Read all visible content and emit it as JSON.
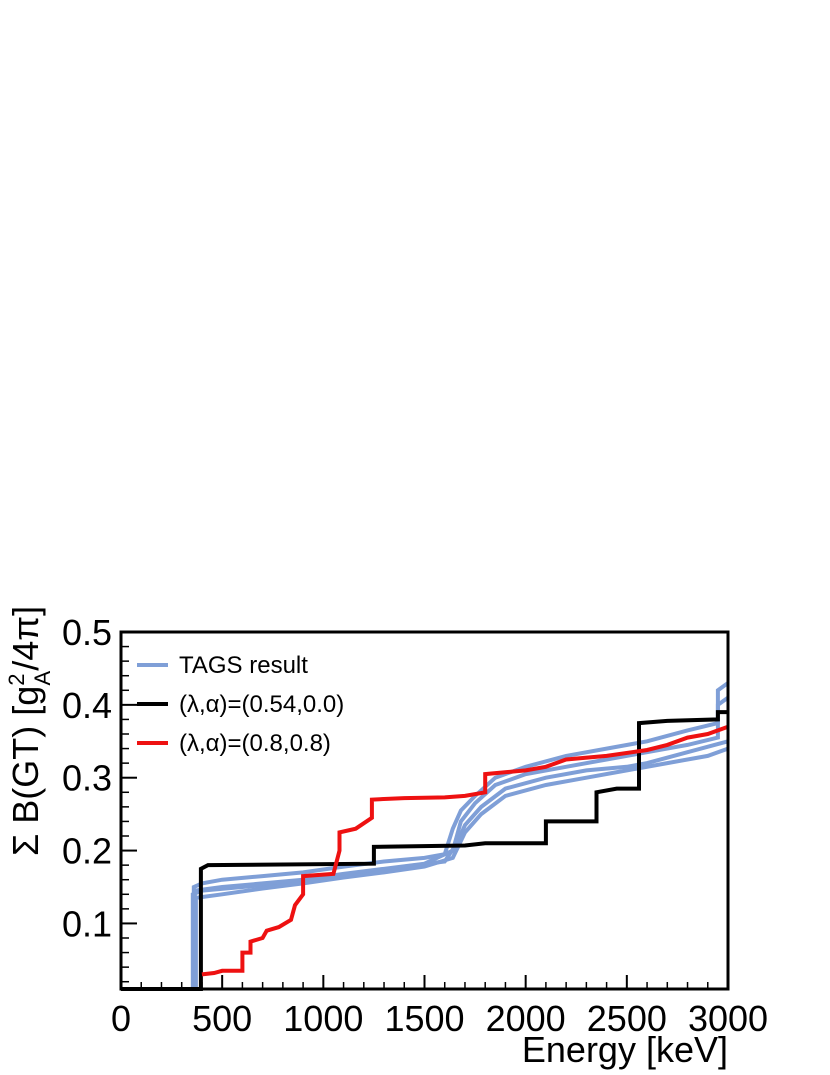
{
  "chart_data": {
    "type": "line",
    "title": "",
    "xlabel": "Energy [keV]",
    "ylabel_parts": {
      "main": "Σ B(GT) [g",
      "sup": "2",
      "sub": "A",
      "tail": "/4π]"
    },
    "xlim": [
      0,
      3000
    ],
    "ylim": [
      0.01,
      0.5
    ],
    "x_ticks": [
      0,
      500,
      1000,
      1500,
      2000,
      2500,
      3000
    ],
    "x_tick_labels": [
      "0",
      "500",
      "1000",
      "1500",
      "2000",
      "2500",
      "3000"
    ],
    "y_ticks": [
      0.1,
      0.2,
      0.3,
      0.4,
      0.5
    ],
    "y_tick_labels": [
      "0.1",
      "0.2",
      "0.3",
      "0.4",
      "0.5"
    ],
    "grid": false,
    "legend_position": "top-left",
    "series": [
      {
        "name": "TAGS result",
        "color": "#7f9fd7",
        "legend": true,
        "points": [
          [
            0,
            0.01
          ],
          [
            360,
            0.01
          ],
          [
            360,
            0.15
          ],
          [
            400,
            0.155
          ],
          [
            500,
            0.16
          ],
          [
            700,
            0.165
          ],
          [
            900,
            0.17
          ],
          [
            1100,
            0.178
          ],
          [
            1300,
            0.185
          ],
          [
            1500,
            0.19
          ],
          [
            1600,
            0.195
          ],
          [
            1640,
            0.23
          ],
          [
            1680,
            0.255
          ],
          [
            1750,
            0.275
          ],
          [
            1850,
            0.3
          ],
          [
            2000,
            0.315
          ],
          [
            2200,
            0.33
          ],
          [
            2400,
            0.34
          ],
          [
            2600,
            0.35
          ],
          [
            2800,
            0.365
          ],
          [
            2950,
            0.375
          ],
          [
            2950,
            0.42
          ],
          [
            3000,
            0.43
          ]
        ]
      },
      {
        "color": "#7f9fd7",
        "legend": false,
        "points": [
          [
            0,
            0.01
          ],
          [
            355,
            0.01
          ],
          [
            355,
            0.14
          ],
          [
            400,
            0.145
          ],
          [
            600,
            0.15
          ],
          [
            800,
            0.155
          ],
          [
            1000,
            0.16
          ],
          [
            1200,
            0.17
          ],
          [
            1400,
            0.178
          ],
          [
            1600,
            0.185
          ],
          [
            1660,
            0.21
          ],
          [
            1700,
            0.235
          ],
          [
            1780,
            0.26
          ],
          [
            1900,
            0.285
          ],
          [
            2100,
            0.3
          ],
          [
            2300,
            0.31
          ],
          [
            2500,
            0.315
          ],
          [
            2600,
            0.32
          ],
          [
            2800,
            0.335
          ],
          [
            3000,
            0.35
          ]
        ]
      },
      {
        "color": "#7f9fd7",
        "legend": false,
        "points": [
          [
            0,
            0.01
          ],
          [
            365,
            0.01
          ],
          [
            365,
            0.145
          ],
          [
            500,
            0.15
          ],
          [
            700,
            0.155
          ],
          [
            900,
            0.16
          ],
          [
            1100,
            0.168
          ],
          [
            1300,
            0.175
          ],
          [
            1500,
            0.182
          ],
          [
            1640,
            0.2
          ],
          [
            1680,
            0.24
          ],
          [
            1750,
            0.265
          ],
          [
            1850,
            0.29
          ],
          [
            2000,
            0.305
          ],
          [
            2200,
            0.315
          ],
          [
            2400,
            0.325
          ],
          [
            2600,
            0.335
          ],
          [
            2800,
            0.345
          ],
          [
            2950,
            0.355
          ],
          [
            2950,
            0.4
          ],
          [
            3000,
            0.41
          ]
        ]
      },
      {
        "color": "#7f9fd7",
        "legend": false,
        "points": [
          [
            0,
            0.01
          ],
          [
            370,
            0.01
          ],
          [
            370,
            0.135
          ],
          [
            500,
            0.14
          ],
          [
            700,
            0.148
          ],
          [
            900,
            0.155
          ],
          [
            1100,
            0.163
          ],
          [
            1300,
            0.17
          ],
          [
            1500,
            0.178
          ],
          [
            1640,
            0.19
          ],
          [
            1700,
            0.225
          ],
          [
            1780,
            0.25
          ],
          [
            1900,
            0.275
          ],
          [
            2100,
            0.29
          ],
          [
            2300,
            0.3
          ],
          [
            2500,
            0.31
          ],
          [
            2700,
            0.32
          ],
          [
            2900,
            0.33
          ],
          [
            3000,
            0.34
          ]
        ]
      },
      {
        "name": "(λ,α)=(0.54,0.0)",
        "color": "#000000",
        "legend": true,
        "points": [
          [
            0,
            0.01
          ],
          [
            395,
            0.01
          ],
          [
            395,
            0.175
          ],
          [
            430,
            0.18
          ],
          [
            1250,
            0.182
          ],
          [
            1250,
            0.205
          ],
          [
            1700,
            0.207
          ],
          [
            1800,
            0.21
          ],
          [
            2100,
            0.21
          ],
          [
            2100,
            0.24
          ],
          [
            2350,
            0.24
          ],
          [
            2350,
            0.28
          ],
          [
            2450,
            0.285
          ],
          [
            2560,
            0.285
          ],
          [
            2560,
            0.375
          ],
          [
            2700,
            0.378
          ],
          [
            2950,
            0.38
          ],
          [
            2950,
            0.39
          ],
          [
            3000,
            0.39
          ]
        ]
      },
      {
        "name": "(λ,α)=(0.8,0.8)",
        "color": "#ee1111",
        "legend": true,
        "points": [
          [
            400,
            0.03
          ],
          [
            460,
            0.032
          ],
          [
            500,
            0.035
          ],
          [
            600,
            0.035
          ],
          [
            600,
            0.06
          ],
          [
            640,
            0.06
          ],
          [
            640,
            0.075
          ],
          [
            700,
            0.08
          ],
          [
            720,
            0.09
          ],
          [
            780,
            0.095
          ],
          [
            840,
            0.105
          ],
          [
            860,
            0.125
          ],
          [
            900,
            0.14
          ],
          [
            900,
            0.165
          ],
          [
            1050,
            0.168
          ],
          [
            1080,
            0.2
          ],
          [
            1080,
            0.225
          ],
          [
            1160,
            0.23
          ],
          [
            1240,
            0.245
          ],
          [
            1240,
            0.27
          ],
          [
            1400,
            0.272
          ],
          [
            1600,
            0.273
          ],
          [
            1700,
            0.275
          ],
          [
            1800,
            0.28
          ],
          [
            1800,
            0.305
          ],
          [
            2000,
            0.31
          ],
          [
            2100,
            0.315
          ],
          [
            2200,
            0.325
          ],
          [
            2400,
            0.33
          ],
          [
            2600,
            0.338
          ],
          [
            2700,
            0.345
          ],
          [
            2800,
            0.355
          ],
          [
            2900,
            0.36
          ],
          [
            3000,
            0.37
          ]
        ]
      }
    ]
  }
}
